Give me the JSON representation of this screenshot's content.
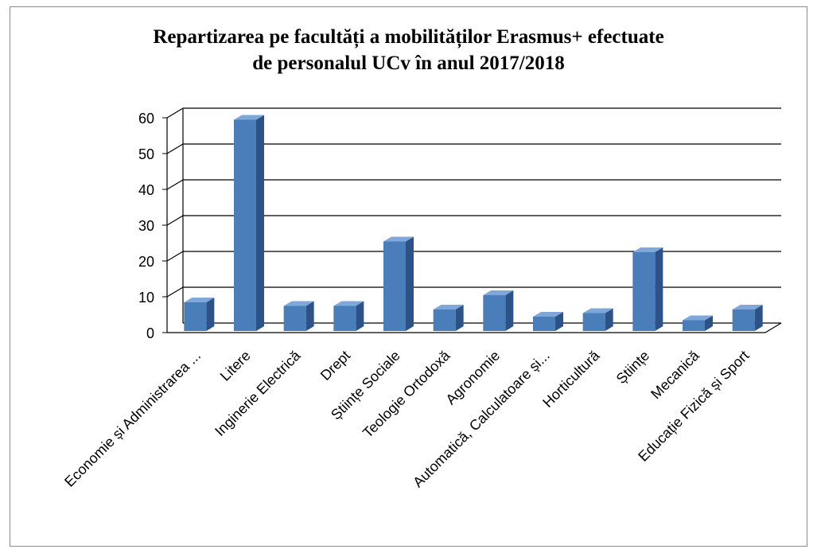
{
  "chart_data": {
    "type": "bar",
    "title_lines": [
      "Repartizarea pe facultăți a mobilităților Erasmus+ efectuate",
      "de personalul UCv în anul  2017/2018"
    ],
    "categories": [
      "Economie și Administrarea ...",
      "Litere",
      "Inginerie Electrică",
      "Drept",
      "Științe Sociale",
      "Teologie Ortodoxă",
      "Agronomie",
      "Automatică, Calculatoare și...",
      "Horticultură",
      "Științe",
      "Mecanică",
      "Educație Fizică și Sport"
    ],
    "values": [
      8,
      59,
      7,
      7,
      25,
      6,
      10,
      4,
      5,
      22,
      3,
      6
    ],
    "ylim": [
      0,
      60
    ],
    "yticks": [
      "0",
      "10",
      "20",
      "30",
      "40",
      "50",
      "60"
    ],
    "grid": true,
    "legend": "none",
    "colors": {
      "bar_front": "#4a7ebb",
      "bar_side": "#2c5288",
      "bar_top": "#7fa7d9",
      "grid": "#000000"
    }
  }
}
